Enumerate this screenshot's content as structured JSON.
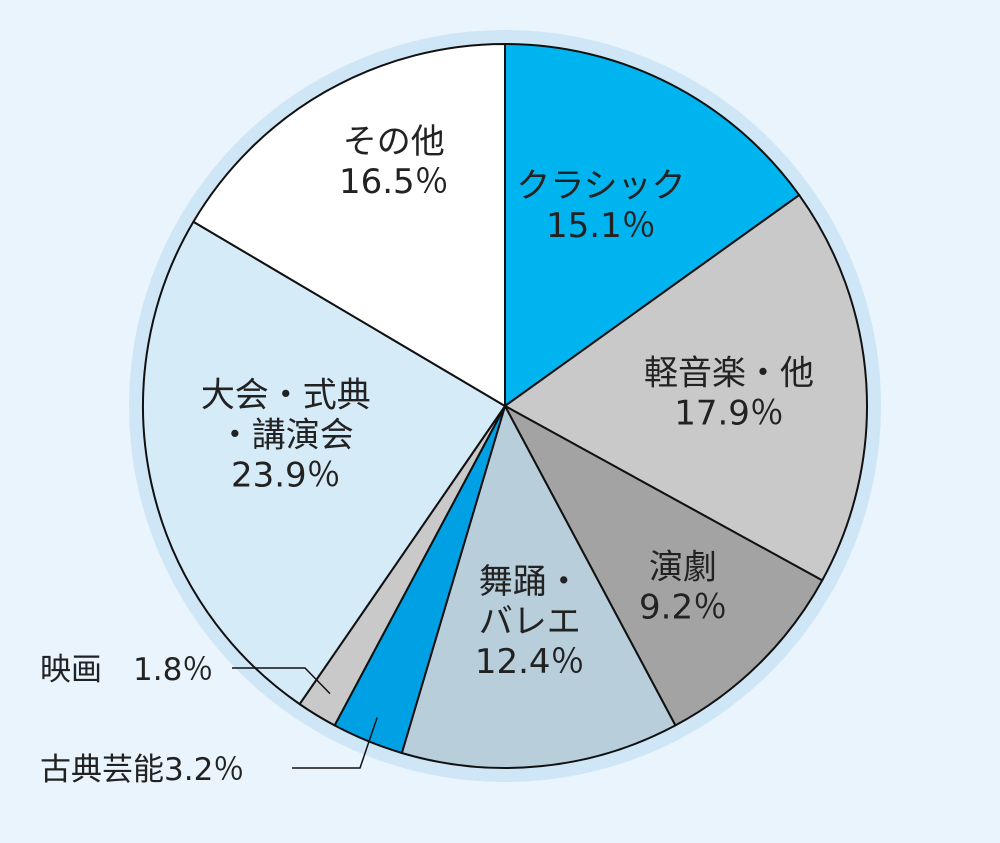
{
  "chart_data": {
    "type": "pie",
    "title": "",
    "start_angle_deg": 0,
    "direction": "clockwise",
    "slices": [
      {
        "name": "クラシック",
        "label_lines": [
          "クラシック"
        ],
        "value": 15.1,
        "value_label": "15.1％",
        "color": "#00b4ef"
      },
      {
        "name": "軽音楽・他",
        "label_lines": [
          "軽音楽・他"
        ],
        "value": 17.9,
        "value_label": "17.9％",
        "color": "#c9c9c9"
      },
      {
        "name": "演劇",
        "label_lines": [
          "演劇"
        ],
        "value": 9.2,
        "value_label": "9.2％",
        "color": "#a3a3a3"
      },
      {
        "name": "舞踊・バレエ",
        "label_lines": [
          "舞踊・",
          "バレエ"
        ],
        "value": 12.4,
        "value_label": "12.4％",
        "color": "#b8cedb"
      },
      {
        "name": "古典芸能",
        "label_lines": [
          "古典芸能"
        ],
        "value": 3.2,
        "value_label": "3.2％",
        "color": "#00a0e4",
        "outside": true
      },
      {
        "name": "映画",
        "label_lines": [
          "映画"
        ],
        "value": 1.8,
        "value_label": "1.8％",
        "color": "#c9c9c9",
        "outside": true
      },
      {
        "name": "大会・式典・講演会",
        "label_lines": [
          "大会・式典",
          "・講演会"
        ],
        "value": 23.9,
        "value_label": "23.9％",
        "color": "#d6ebf8"
      },
      {
        "name": "その他",
        "label_lines": [
          "その他"
        ],
        "value": 16.5,
        "value_label": "16.5％",
        "color": "#ffffff"
      }
    ],
    "outside_labels": {
      "映画": "映画　1.8％",
      "古典芸能": "古典芸能3.2％"
    },
    "background_color": "#e9f4fc",
    "halo_color": "#cfe6f6"
  }
}
